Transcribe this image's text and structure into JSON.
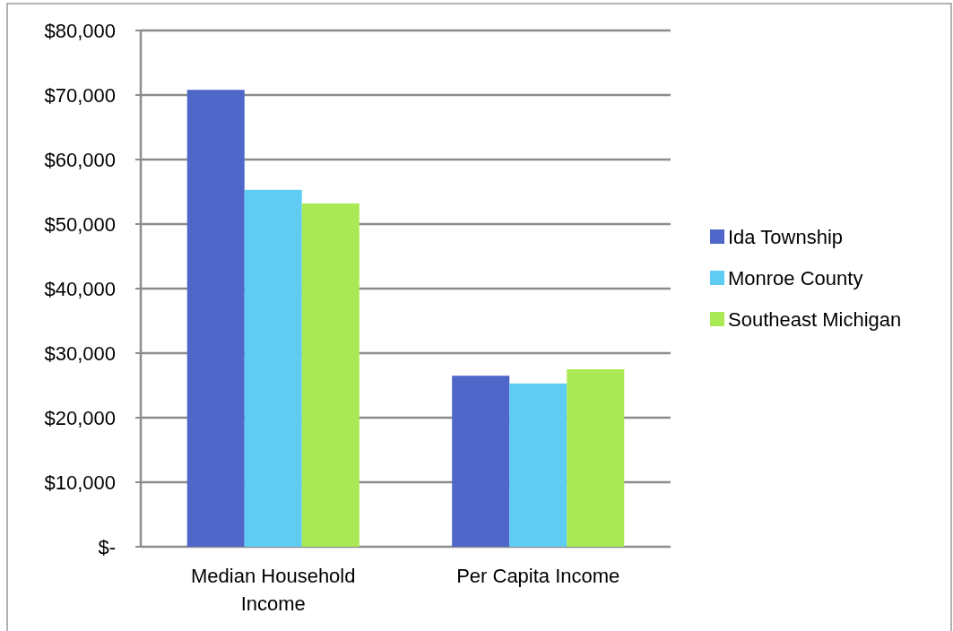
{
  "chart_data": {
    "type": "bar",
    "categories": [
      "Median Household Income",
      "Per Capita Income"
    ],
    "series": [
      {
        "name": "Ida Township",
        "color": "#4f67c8",
        "values": [
          70800,
          26500
        ]
      },
      {
        "name": "Monroe County",
        "color": "#5fcdf3",
        "values": [
          55300,
          25300
        ]
      },
      {
        "name": "Southeast Michigan",
        "color": "#a9e953",
        "values": [
          53200,
          27500
        ]
      }
    ],
    "ylim": [
      0,
      80000
    ],
    "yticks": [
      {
        "value": 0,
        "label": "$-"
      },
      {
        "value": 10000,
        "label": "$10,000"
      },
      {
        "value": 20000,
        "label": "$20,000"
      },
      {
        "value": 30000,
        "label": "$30,000"
      },
      {
        "value": 40000,
        "label": "$40,000"
      },
      {
        "value": 50000,
        "label": "$50,000"
      },
      {
        "value": 60000,
        "label": "$60,000"
      },
      {
        "value": 70000,
        "label": "$70,000"
      },
      {
        "value": 80000,
        "label": "$80,000"
      }
    ],
    "grid": "y",
    "legend": "right"
  }
}
